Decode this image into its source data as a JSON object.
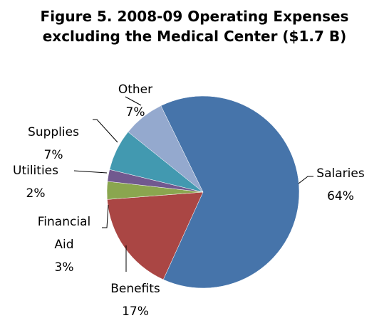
{
  "chart_data": {
    "type": "pie",
    "title": [
      "Figure 5.  2008-09 Operating Expenses",
      "excluding the Medical Center ($1.7 B)"
    ],
    "categories": [
      "Salaries",
      "Benefits",
      "Financial Aid",
      "Utilities",
      "Supplies",
      "Other"
    ],
    "values": [
      64,
      17,
      3,
      2,
      7,
      7
    ],
    "value_labels": [
      "64%",
      "17%",
      "3%",
      "2%",
      "7%",
      "7%"
    ],
    "colors": [
      "#4674aa",
      "#aa4644",
      "#8aa64f",
      "#71598f",
      "#4299b0",
      "#94a9ce"
    ]
  }
}
